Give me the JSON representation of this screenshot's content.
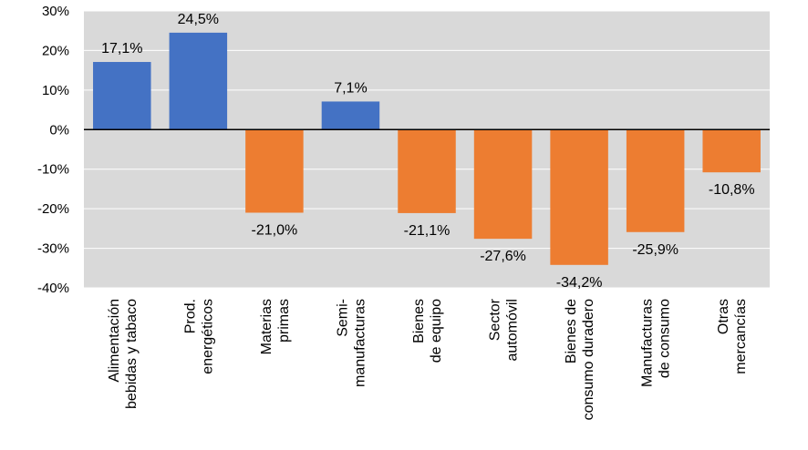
{
  "chart_data": {
    "type": "bar",
    "title": "",
    "xlabel": "",
    "ylabel": "",
    "ylim": [
      -40,
      30
    ],
    "y_ticks": [
      "30%",
      "20%",
      "10%",
      "0%",
      "-10%",
      "-20%",
      "-30%",
      "-40%"
    ],
    "y_tick_values": [
      30,
      20,
      10,
      0,
      -10,
      -20,
      -30,
      -40
    ],
    "grid": true,
    "legend": "none",
    "categories": [
      [
        "Alimentación",
        "bebidas y tabaco"
      ],
      [
        "Prod.",
        "energéticos"
      ],
      [
        "Materias",
        "primas"
      ],
      [
        "Semi-",
        "manufacturas"
      ],
      [
        "Bienes",
        "de equipo"
      ],
      [
        "Sector",
        "automóvil"
      ],
      [
        "Bienes de",
        "consumo duradero"
      ],
      [
        "Manufacturas",
        "de consumo"
      ],
      [
        "Otras",
        "mercancías"
      ]
    ],
    "values": [
      17.1,
      24.5,
      -21.0,
      7.1,
      -21.1,
      -27.6,
      -34.2,
      -25.9,
      -10.8
    ],
    "data_labels": [
      "17,1%",
      "24,5%",
      "-21,0%",
      "7,1%",
      "-21,1%",
      "-27,6%",
      "-34,2%",
      "-25,9%",
      "-10,8%"
    ],
    "colors": {
      "positive": "#4472C4",
      "negative": "#ED7D31",
      "plot_background": "#D9D9D9",
      "gridline": "#FFFFFF",
      "zero_line": "#000000"
    }
  }
}
